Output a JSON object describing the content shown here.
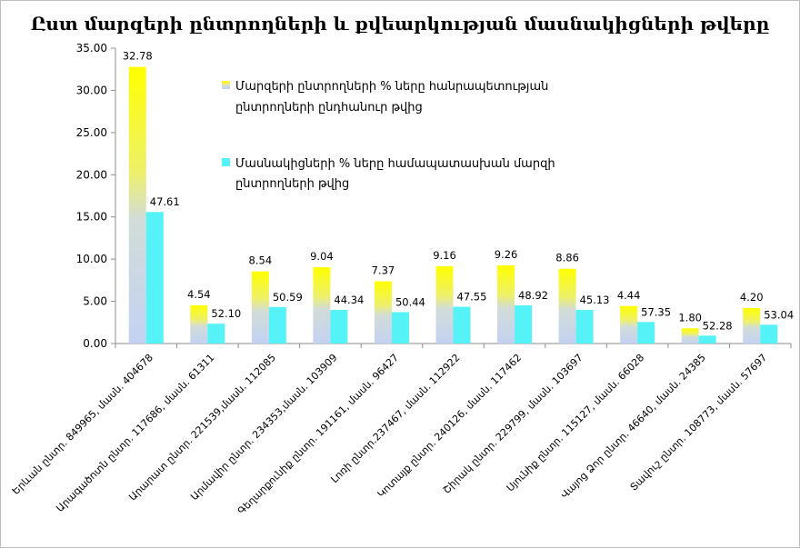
{
  "chart_data": {
    "type": "bar",
    "title": "Ըստ մարզերի ընտրողների և քվեարկության մասնակիցների թվերը",
    "ylim": [
      0,
      35
    ],
    "yticks": [
      "0.00",
      "5.00",
      "10.00",
      "15.00",
      "20.00",
      "25.00",
      "30.00",
      "35.00"
    ],
    "grid": false,
    "legend_position": "top-center",
    "categories": [
      "Երևան ընտր. 849965, մասն. 404678",
      "Արագածոտն  ընտր. 117686, մասն. 61311",
      "Արարատ ընտր. 221539,մասն. 112085",
      "Արմավիր ընտր. 234353,մասն. 103909",
      "Գեղարքունիք ընտր. 191161, մասն. 96427",
      "Լոռի ընտր.237467, մասն. 112922",
      "Կոտայք ընտր. 240126, մասն. 117462",
      "Շիրակ ընտր. 229799, մասն. 103697",
      "Սյունիք ընտր. 115127, մասն. 66028",
      "Վայոց Ձոր ընտր. 46640, մասն. 24385",
      "Տավուշ ընտր. 108773, մասն. 57697"
    ],
    "series": [
      {
        "name": "Մարզերի  ընտրողների  %  ները  հանրապետության  ընտրողների  ընդհանուր   թվից",
        "values": [
          32.78,
          4.54,
          8.54,
          9.04,
          7.37,
          9.16,
          9.26,
          8.86,
          4.44,
          1.8,
          4.2
        ],
        "labels": [
          "32.78",
          "4.54",
          "8.54",
          "9.04",
          "7.37",
          "9.16",
          "9.26",
          "8.86",
          "4.44",
          "1.80",
          "4.20"
        ],
        "color_top": "#ffff00",
        "color_bottom": "#c6d4f0"
      },
      {
        "name": "Մասնակիցների  %  ները  համապատասխան  մարզի  ընտրողների  թվից",
        "values": [
          15.59,
          2.35,
          4.32,
          3.99,
          3.72,
          4.35,
          4.53,
          3.99,
          2.55,
          0.94,
          2.23
        ],
        "labels": [
          "47.61",
          "52.10",
          "50.59",
          "44.34",
          "50.44",
          "47.55",
          "48.92",
          "45.13",
          "57.35",
          "52.28",
          "53.04"
        ],
        "color": "#55f2f7"
      }
    ]
  }
}
